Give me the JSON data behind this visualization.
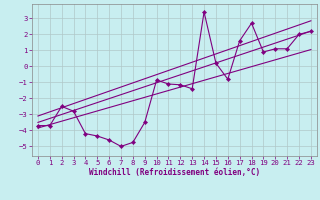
{
  "bg_color": "#c8eef0",
  "line_color": "#800080",
  "grid_color": "#b0c8c8",
  "xlabel": "Windchill (Refroidissement éolien,°C)",
  "xlim": [
    -0.5,
    23.5
  ],
  "ylim": [
    -5.6,
    3.9
  ],
  "yticks": [
    -5,
    -4,
    -3,
    -2,
    -1,
    0,
    1,
    2,
    3
  ],
  "xticks": [
    0,
    1,
    2,
    3,
    4,
    5,
    6,
    7,
    8,
    9,
    10,
    11,
    12,
    13,
    14,
    15,
    16,
    17,
    18,
    19,
    20,
    21,
    22,
    23
  ],
  "scatter_x": [
    0,
    1,
    2,
    3,
    4,
    5,
    6,
    7,
    8,
    9,
    10,
    11,
    12,
    13,
    14,
    15,
    16,
    17,
    18,
    19,
    20,
    21,
    22,
    23
  ],
  "scatter_y": [
    -3.7,
    -3.7,
    -2.5,
    -2.8,
    -4.2,
    -4.35,
    -4.6,
    -5.0,
    -4.75,
    -3.5,
    -0.85,
    -1.1,
    -1.15,
    -1.4,
    3.4,
    0.2,
    -0.8,
    1.6,
    2.7,
    0.9,
    1.1,
    1.1,
    2.0,
    2.2
  ],
  "line1_x": [
    0,
    23
  ],
  "line1_y": [
    -3.5,
    2.2
  ],
  "line2_x": [
    0,
    23
  ],
  "line2_y": [
    -3.1,
    2.85
  ],
  "line3_x": [
    0,
    23
  ],
  "line3_y": [
    -3.85,
    1.05
  ],
  "xlabel_fontsize": 5.5,
  "tick_fontsize": 5.2,
  "marker_size": 2.2,
  "linewidth": 0.8
}
